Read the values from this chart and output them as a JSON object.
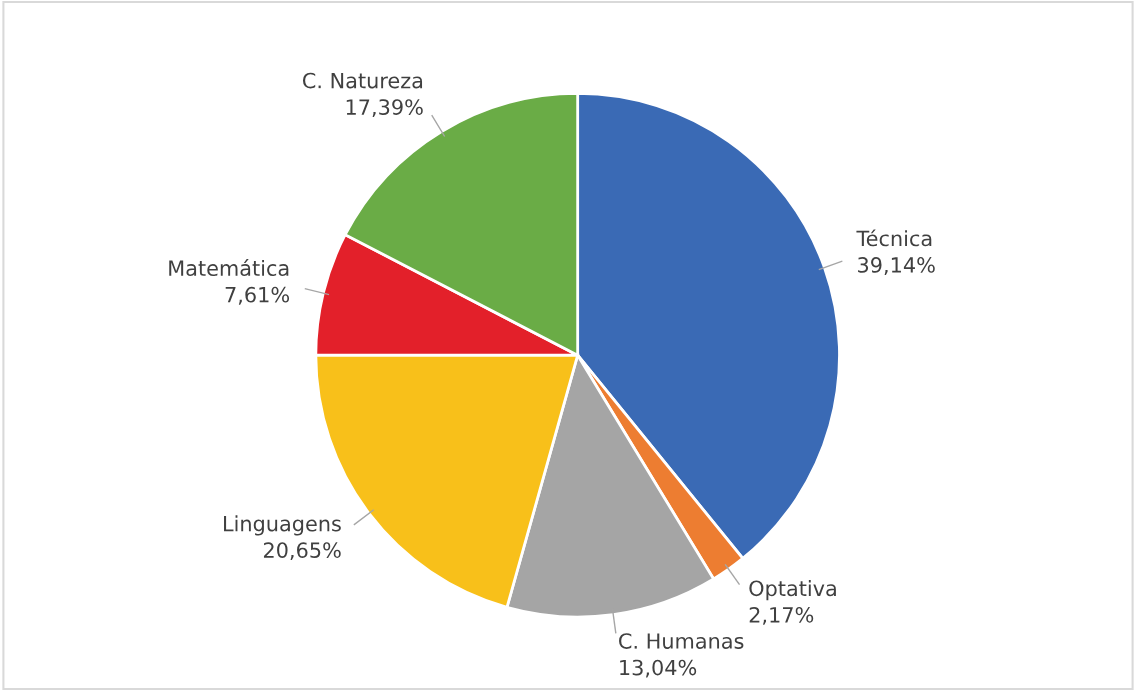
{
  "chart_data": {
    "type": "pie",
    "categories": [
      "Técnica",
      "Optativa",
      "C. Humanas",
      "Linguagens",
      "Matemática",
      "C. Natureza"
    ],
    "values": [
      39.14,
      2.17,
      13.04,
      20.65,
      7.61,
      17.39
    ],
    "value_labels": [
      "39,14%",
      "2,17%",
      "13,04%",
      "20,65%",
      "7,61%",
      "17,39%"
    ],
    "colors": [
      "#3a6ab5",
      "#ed7d31",
      "#a5a5a5",
      "#f8c01a",
      "#e3202a",
      "#6aac46"
    ]
  }
}
